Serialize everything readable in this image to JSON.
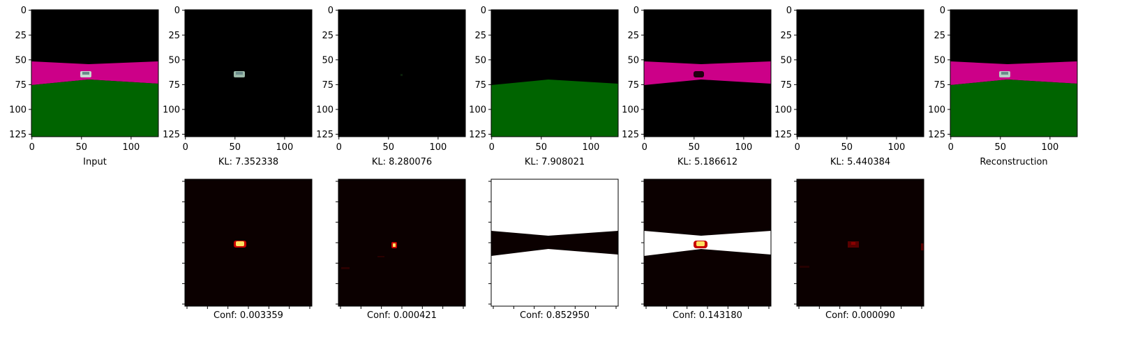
{
  "figure": {
    "top_row_captions": [
      "Input",
      "KL: 7.352338",
      "KL: 8.280076",
      "KL: 7.908021",
      "KL: 5.186612",
      "KL: 5.440384",
      "Reconstruction"
    ],
    "bottom_row_captions": [
      "Conf: 0.003359",
      "Conf: 0.000421",
      "Conf: 0.852950",
      "Conf: 0.143180",
      "Conf: 0.000090"
    ],
    "colors": {
      "road": "#cc0088",
      "grass": "#006400",
      "sky": "#000000",
      "heat_low": "#0b0000",
      "heat_mid": "#c80000",
      "heat_high": "#ffe060",
      "heat_max": "#ffffff"
    }
  },
  "chart_data": [
    {
      "type": "heatmap",
      "panel": "input",
      "xlabel": "Input",
      "xlim": [
        0,
        128
      ],
      "ylim": [
        128,
        0
      ],
      "x_ticks": [
        0,
        50,
        100
      ],
      "y_ticks": [
        0,
        25,
        50,
        75,
        100,
        125
      ],
      "content": [
        "road",
        "grass",
        "car"
      ]
    },
    {
      "type": "heatmap",
      "panel": "component-1",
      "xlabel": "KL: 7.352338",
      "kl": 7.352338,
      "x_ticks": [
        0,
        50,
        100
      ],
      "y_ticks": [
        0,
        25,
        50,
        75,
        100,
        125
      ],
      "content": [
        "car"
      ]
    },
    {
      "type": "heatmap",
      "panel": "component-2",
      "xlabel": "KL: 8.280076",
      "kl": 8.280076,
      "x_ticks": [
        0,
        50,
        100
      ],
      "y_ticks": [
        0,
        25,
        50,
        75,
        100,
        125
      ],
      "content": []
    },
    {
      "type": "heatmap",
      "panel": "component-3",
      "xlabel": "KL: 7.908021",
      "kl": 7.908021,
      "x_ticks": [
        0,
        50,
        100
      ],
      "y_ticks": [
        0,
        25,
        50,
        75,
        100,
        125
      ],
      "content": [
        "grass"
      ]
    },
    {
      "type": "heatmap",
      "panel": "component-4",
      "xlabel": "KL: 5.186612",
      "kl": 5.186612,
      "x_ticks": [
        0,
        50,
        100
      ],
      "y_ticks": [
        0,
        25,
        50,
        75,
        100,
        125
      ],
      "content": [
        "road",
        "car-shadow"
      ]
    },
    {
      "type": "heatmap",
      "panel": "component-5",
      "xlabel": "KL: 5.440384",
      "kl": 5.440384,
      "x_ticks": [
        0,
        50,
        100
      ],
      "y_ticks": [
        0,
        25,
        50,
        75,
        100,
        125
      ],
      "content": []
    },
    {
      "type": "heatmap",
      "panel": "reconstruction",
      "xlabel": "Reconstruction",
      "x_ticks": [
        0,
        50,
        100
      ],
      "y_ticks": [
        0,
        25,
        50,
        75,
        100,
        125
      ],
      "content": [
        "road",
        "grass",
        "car"
      ]
    },
    {
      "type": "heatmap",
      "panel": "mask-1",
      "xlabel": "Conf: 0.003359",
      "confidence": 0.003359,
      "content": [
        "car-hotspot"
      ]
    },
    {
      "type": "heatmap",
      "panel": "mask-2",
      "xlabel": "Conf: 0.000421",
      "confidence": 0.000421,
      "content": [
        "small-hotspot"
      ]
    },
    {
      "type": "heatmap",
      "panel": "mask-3",
      "xlabel": "Conf: 0.852950",
      "confidence": 0.85295,
      "content": [
        "sky-white",
        "road-black",
        "grass-white"
      ]
    },
    {
      "type": "heatmap",
      "panel": "mask-4",
      "xlabel": "Conf: 0.143180",
      "confidence": 0.14318,
      "content": [
        "road-white",
        "car-hotspot"
      ]
    },
    {
      "type": "heatmap",
      "panel": "mask-5",
      "xlabel": "Conf: 0.000090",
      "confidence": 9e-05,
      "content": [
        "faint-hotspot"
      ]
    }
  ]
}
